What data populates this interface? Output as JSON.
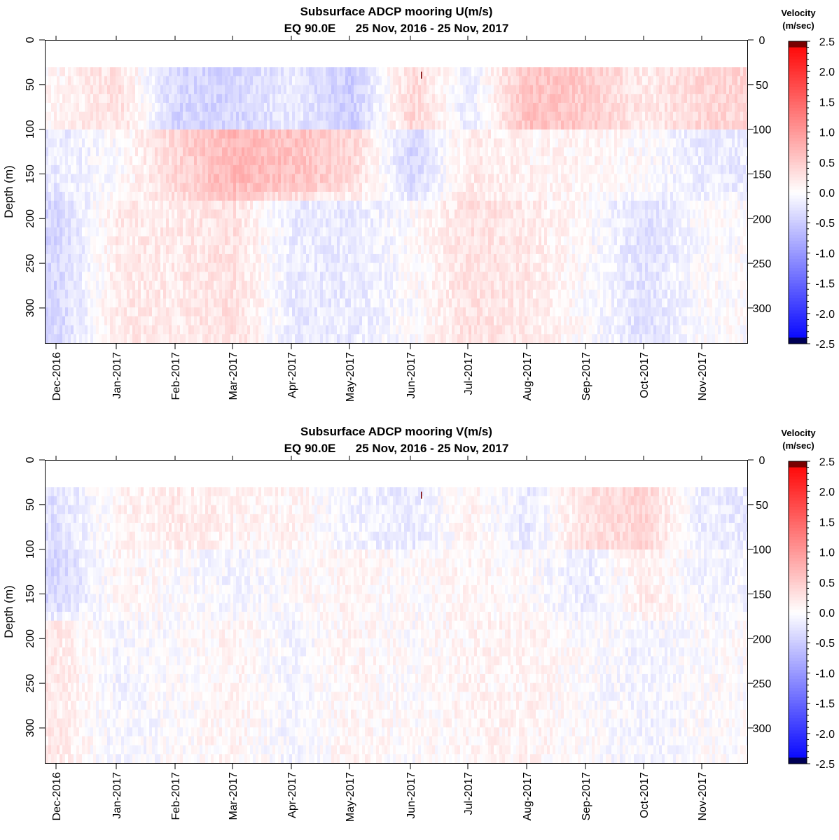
{
  "chart_data": [
    {
      "type": "heatmap",
      "title": "Subsurface ADCP mooring U(m/s)",
      "subtitle": "EQ 90.0E      25 Nov, 2016 - 25 Nov, 2017",
      "ylabel": "Depth (m)",
      "xlabel": "",
      "ylim": [
        0,
        340
      ],
      "y_reversed": true,
      "yticks": [
        "0",
        "50",
        "100",
        "150",
        "200",
        "250",
        "300"
      ],
      "xticks": [
        "Dec-2016",
        "Jan-2017",
        "Feb-2017",
        "Mar-2017",
        "Apr-2017",
        "May-2017",
        "Jun-2017",
        "Jul-2017",
        "Aug-2017",
        "Sep-2017",
        "Oct-2017",
        "Nov-2017"
      ],
      "data_start_depth": 35,
      "approx_data": {
        "depth_levels": [
          35,
          45,
          55,
          65,
          75,
          85,
          95,
          105,
          115,
          125,
          135,
          145,
          155,
          165,
          175,
          185,
          195,
          205,
          215,
          225,
          235,
          245,
          255,
          265,
          275,
          285,
          295,
          305,
          315,
          325,
          335
        ],
        "note_units": "m/s",
        "months": [
          "Dec-2016",
          "Jan-2017",
          "Feb-2017",
          "Mar-2017",
          "Apr-2017",
          "May-2017",
          "Jun-2017",
          "Jul-2017",
          "Aug-2017",
          "Sep-2017",
          "Oct-2017",
          "Nov-2017"
        ],
        "surface_layer_u_35_100m": [
          0.1,
          0.3,
          -0.4,
          -0.4,
          -0.2,
          -0.5,
          0.4,
          -0.2,
          0.6,
          0.5,
          0.2,
          0.4
        ],
        "mid_layer_u_100_180m": [
          -0.2,
          0.0,
          0.4,
          0.7,
          0.6,
          0.4,
          -0.4,
          0.2,
          0.1,
          0.1,
          0.0,
          -0.2
        ],
        "deep_layer_u_180_340m": [
          -0.4,
          0.2,
          0.2,
          0.3,
          -0.2,
          -0.2,
          0.0,
          0.3,
          0.2,
          0.0,
          -0.3,
          0.0
        ]
      },
      "colorbar": {
        "title_line1": "Velocity",
        "title_line2": "(m/sec)",
        "min": -2.5,
        "max": 2.5,
        "ticks": [
          "2.5",
          "2.0",
          "1.5",
          "1.0",
          "0.5",
          "0.0",
          "-0.5",
          "-1.0",
          "-1.5",
          "-2.0",
          "-2.5"
        ],
        "colors": {
          "negative": "#0000ff",
          "zero": "#ffffff",
          "positive": "#ff0000",
          "max": "#7a0000",
          "min": "#000055"
        }
      }
    },
    {
      "type": "heatmap",
      "title": "Subsurface ADCP mooring V(m/s)",
      "subtitle": "EQ 90.0E      25 Nov, 2016 - 25 Nov, 2017",
      "ylabel": "Depth (m)",
      "xlabel": "",
      "ylim": [
        0,
        340
      ],
      "y_reversed": true,
      "yticks": [
        "0",
        "50",
        "100",
        "150",
        "200",
        "250",
        "300"
      ],
      "xticks": [
        "Dec-2016",
        "Jan-2017",
        "Feb-2017",
        "Mar-2017",
        "Apr-2017",
        "May-2017",
        "Jun-2017",
        "Jul-2017",
        "Aug-2017",
        "Sep-2017",
        "Oct-2017",
        "Nov-2017"
      ],
      "data_start_depth": 35,
      "approx_data": {
        "depth_levels": [
          35,
          45,
          55,
          65,
          75,
          85,
          95,
          105,
          115,
          125,
          135,
          145,
          155,
          165,
          175,
          185,
          195,
          205,
          215,
          225,
          235,
          245,
          255,
          265,
          275,
          285,
          295,
          305,
          315,
          325,
          335
        ],
        "note_units": "m/s",
        "months": [
          "Dec-2016",
          "Jan-2017",
          "Feb-2017",
          "Mar-2017",
          "Apr-2017",
          "May-2017",
          "Jun-2017",
          "Jul-2017",
          "Aug-2017",
          "Sep-2017",
          "Oct-2017",
          "Nov-2017"
        ],
        "surface_layer_v_35_100m": [
          -0.3,
          0.1,
          0.2,
          0.1,
          0.1,
          -0.1,
          -0.2,
          0.1,
          -0.2,
          0.3,
          0.4,
          -0.2
        ],
        "mid_layer_v_100_180m": [
          -0.4,
          0.1,
          0.0,
          -0.1,
          0.0,
          0.1,
          0.0,
          0.1,
          0.0,
          -0.2,
          0.2,
          -0.1
        ],
        "deep_layer_v_180_340m": [
          0.2,
          -0.1,
          0.0,
          0.1,
          -0.1,
          0.1,
          0.0,
          0.1,
          0.1,
          0.0,
          -0.1,
          0.0
        ]
      },
      "colorbar": {
        "title_line1": "Velocity",
        "title_line2": "(m/sec)",
        "min": -2.5,
        "max": 2.5,
        "ticks": [
          "2.5",
          "2.0",
          "1.5",
          "1.0",
          "0.5",
          "0.0",
          "-0.5",
          "-1.0",
          "-1.5",
          "-2.0",
          "-2.5"
        ],
        "colors": {
          "negative": "#0000ff",
          "zero": "#ffffff",
          "positive": "#ff0000",
          "max": "#7a0000",
          "min": "#000055"
        }
      }
    }
  ]
}
